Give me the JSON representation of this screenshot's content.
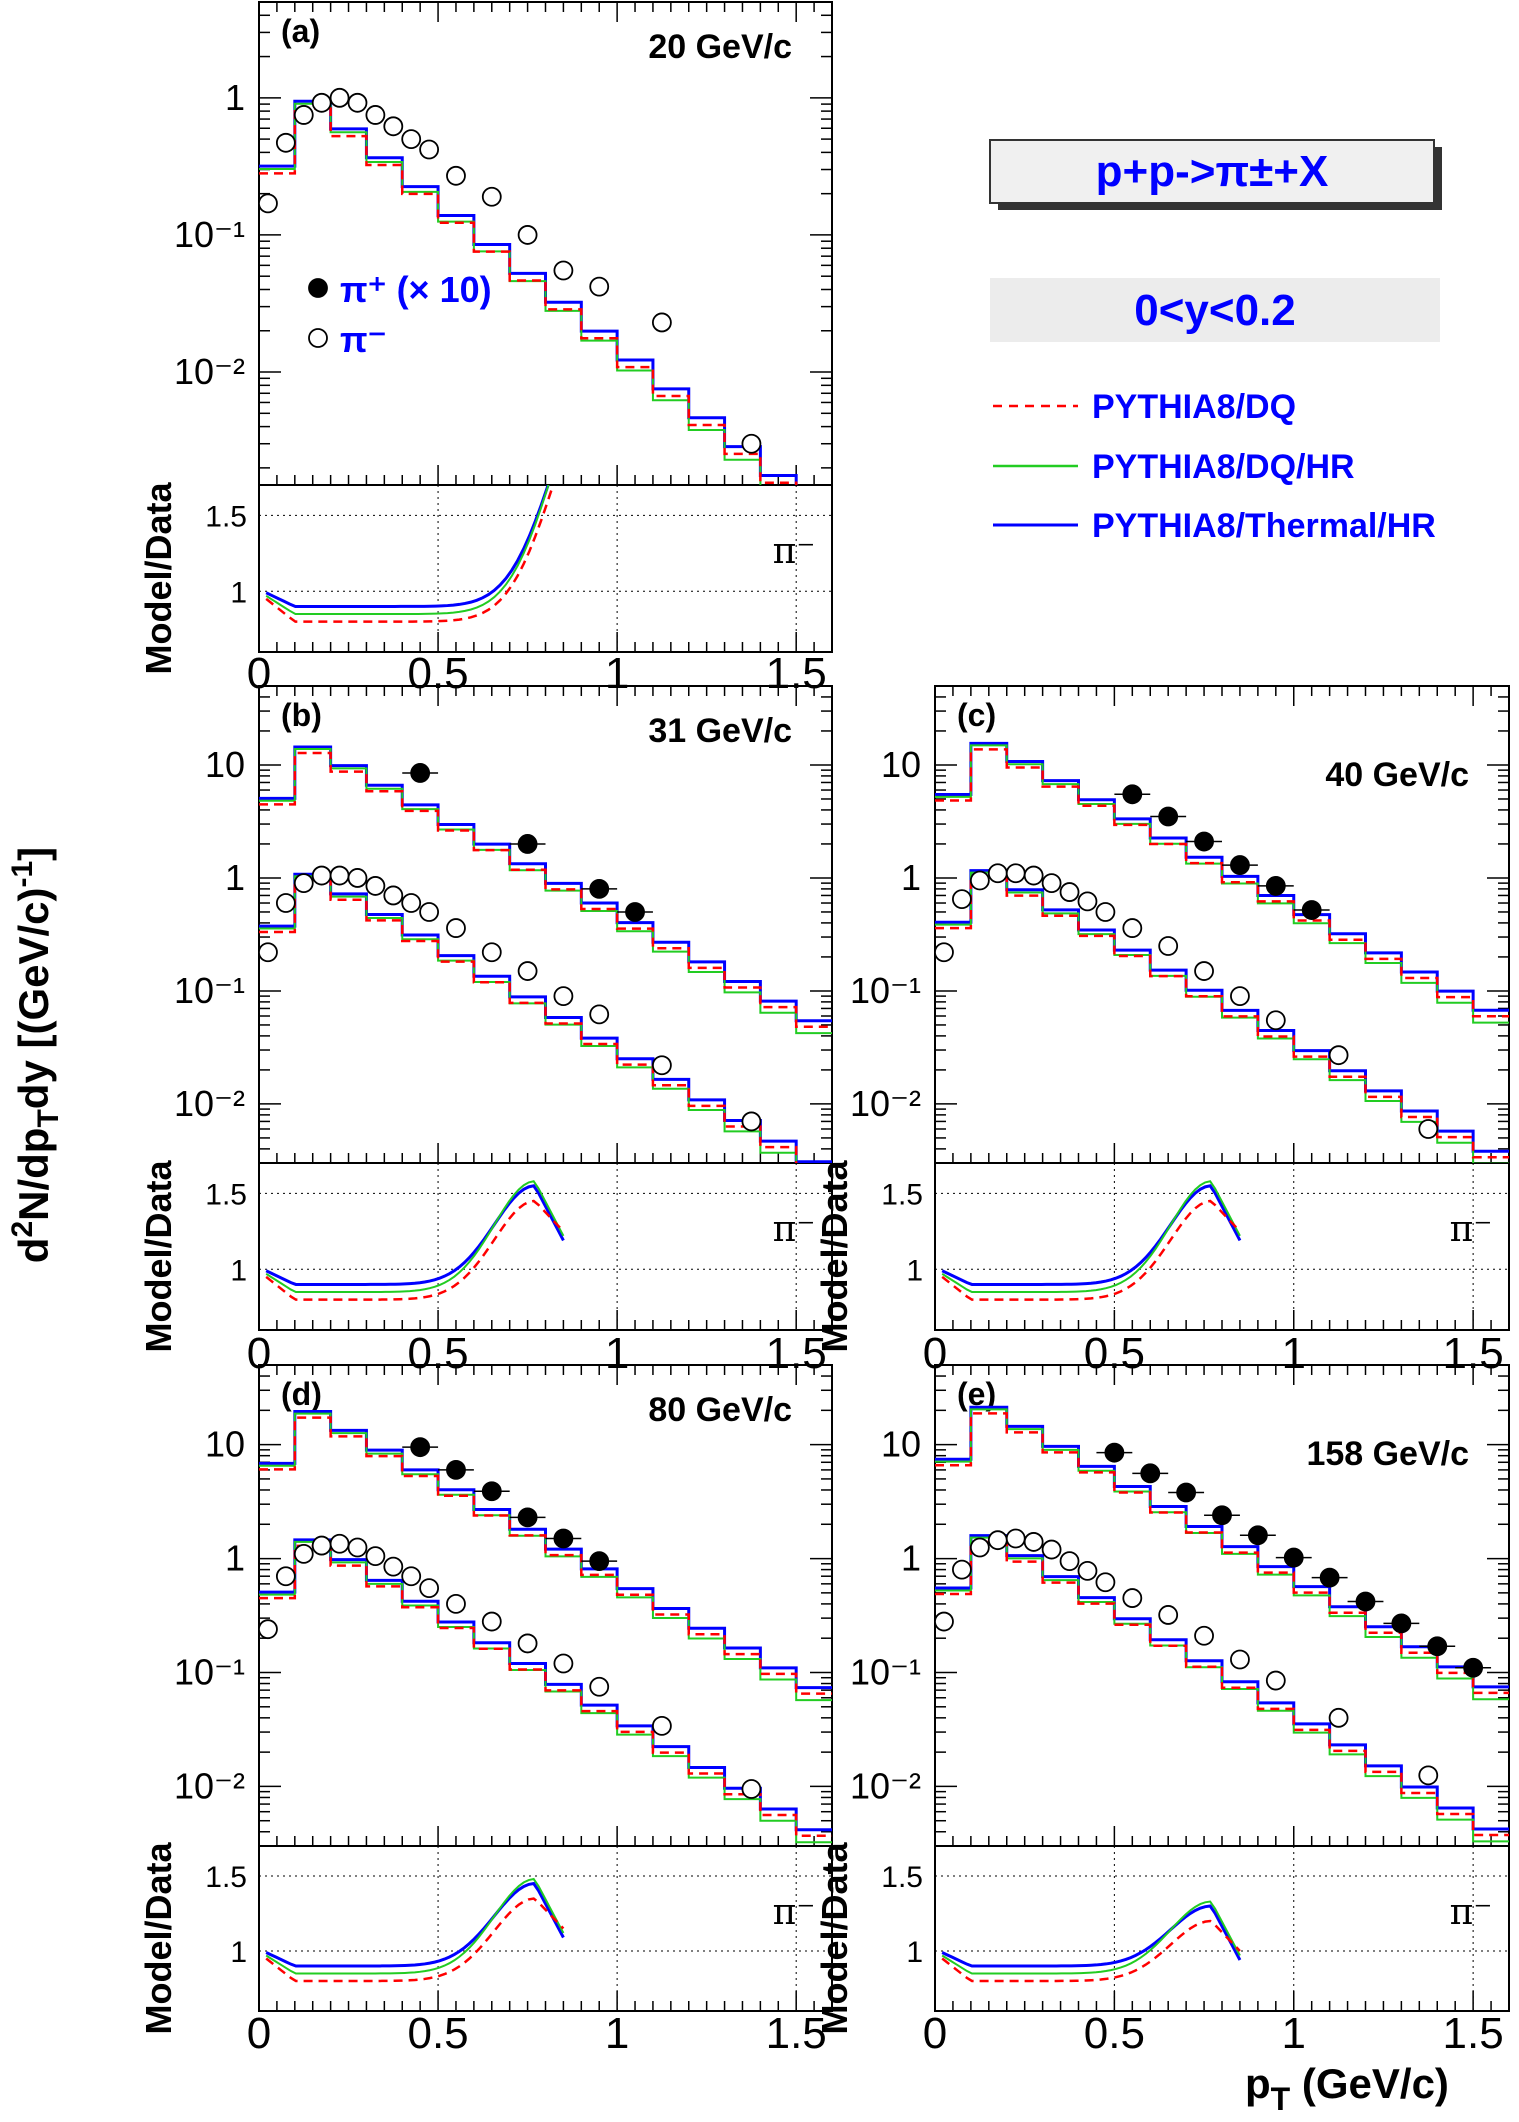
{
  "figure": {
    "y_axis_title": "d²N/dp_Tdy [(GeV/c)⁻¹]",
    "x_axis_title": "p_T (GeV/c)",
    "ratio_ylabel": "Model/Data",
    "reaction_label": "p+p->π±+X",
    "rapidity_label": "0<y<0.2",
    "marker_legend": [
      {
        "symbol": "filled-circle",
        "label": "π⁺ (× 10)"
      },
      {
        "symbol": "open-circle",
        "label": "π⁻"
      }
    ],
    "model_legend": [
      {
        "name": "PYTHIA8/DQ",
        "color": "#ff0000",
        "style": "dashed"
      },
      {
        "name": "PYTHIA8/DQ/HR",
        "color": "#00cc00",
        "style": "solid"
      },
      {
        "name": "PYTHIA8/Thermal/HR",
        "color": "#0000ff",
        "style": "solid"
      }
    ],
    "ratio_tag": "π⁻",
    "colors": {
      "dq": "#ff0000",
      "dqhr": "#22cc22",
      "thermal": "#0000ff"
    }
  },
  "chart_data": [
    {
      "type": "line",
      "panel": "(a)",
      "energy": "20 GeV/c",
      "xlim": [
        0,
        1.6
      ],
      "ylim_log": [
        0.0015,
        5
      ],
      "y_ticks": [
        "10⁻²",
        "10⁻¹",
        "1"
      ],
      "x_ticks": [
        "0",
        "0.5",
        "1",
        "1.5"
      ],
      "ratio_ylim": [
        0.6,
        1.7
      ],
      "ratio_ticks": [
        "1",
        "1.5"
      ],
      "series": [
        {
          "name": "π⁻ data",
          "kind": "open-circle",
          "x": [
            0.025,
            0.075,
            0.125,
            0.175,
            0.225,
            0.275,
            0.325,
            0.375,
            0.425,
            0.475,
            0.55,
            0.65,
            0.75,
            0.85,
            0.95,
            1.125,
            1.375
          ],
          "y": [
            0.17,
            0.47,
            0.75,
            0.92,
            1.0,
            0.92,
            0.75,
            0.62,
            0.5,
            0.42,
            0.27,
            0.19,
            0.1,
            0.055,
            0.042,
            0.023,
            0.003
          ]
        },
        {
          "name": "π⁺ data",
          "kind": "filled-circle",
          "x": [],
          "y": []
        }
      ]
    },
    {
      "type": "line",
      "panel": "(b)",
      "energy": "31 GeV/c",
      "xlim": [
        0,
        1.6
      ],
      "ylim_log": [
        0.003,
        50
      ],
      "y_ticks": [
        "10⁻²",
        "10⁻¹",
        "1",
        "10"
      ],
      "x_ticks": [
        "0",
        "0.5",
        "1",
        "1.5"
      ],
      "ratio_ylim": [
        0.6,
        1.7
      ],
      "ratio_ticks": [
        "1",
        "1.5"
      ],
      "series": [
        {
          "name": "π⁻ data",
          "kind": "open-circle",
          "x": [
            0.025,
            0.075,
            0.125,
            0.175,
            0.225,
            0.275,
            0.325,
            0.375,
            0.425,
            0.475,
            0.55,
            0.65,
            0.75,
            0.85,
            0.95,
            1.125,
            1.375
          ],
          "y": [
            0.22,
            0.6,
            0.9,
            1.05,
            1.05,
            1.0,
            0.85,
            0.7,
            0.6,
            0.5,
            0.36,
            0.22,
            0.15,
            0.09,
            0.062,
            0.022,
            0.007
          ]
        },
        {
          "name": "π⁺ data",
          "kind": "filled-circle",
          "x": [
            0.45,
            0.75,
            0.95,
            1.05
          ],
          "y": [
            8.5,
            2.0,
            0.8,
            0.5
          ]
        }
      ]
    },
    {
      "type": "line",
      "panel": "(c)",
      "energy": "40 GeV/c",
      "xlim": [
        0,
        1.6
      ],
      "ylim_log": [
        0.003,
        50
      ],
      "y_ticks": [
        "10⁻²",
        "10⁻¹",
        "1",
        "10"
      ],
      "x_ticks": [
        "0",
        "0.5",
        "1",
        "1.5"
      ],
      "ratio_ylim": [
        0.6,
        1.7
      ],
      "ratio_ticks": [
        "1",
        "1.5"
      ],
      "series": [
        {
          "name": "π⁻ data",
          "kind": "open-circle",
          "x": [
            0.025,
            0.075,
            0.125,
            0.175,
            0.225,
            0.275,
            0.325,
            0.375,
            0.425,
            0.475,
            0.55,
            0.65,
            0.75,
            0.85,
            0.95,
            1.125,
            1.375
          ],
          "y": [
            0.22,
            0.65,
            0.95,
            1.1,
            1.1,
            1.05,
            0.9,
            0.75,
            0.62,
            0.5,
            0.36,
            0.25,
            0.15,
            0.09,
            0.055,
            0.027,
            0.006
          ]
        },
        {
          "name": "π⁺ data",
          "kind": "filled-circle",
          "x": [
            0.55,
            0.65,
            0.75,
            0.85,
            0.95,
            1.05
          ],
          "y": [
            5.5,
            3.5,
            2.1,
            1.3,
            0.85,
            0.52
          ]
        }
      ]
    },
    {
      "type": "line",
      "panel": "(d)",
      "energy": "80 GeV/c",
      "xlim": [
        0,
        1.6
      ],
      "ylim_log": [
        0.003,
        50
      ],
      "y_ticks": [
        "10⁻²",
        "10⁻¹",
        "1",
        "10"
      ],
      "x_ticks": [
        "0",
        "0.5",
        "1",
        "1.5"
      ],
      "ratio_ylim": [
        0.6,
        1.7
      ],
      "ratio_ticks": [
        "1",
        "1.5"
      ],
      "series": [
        {
          "name": "π⁻ data",
          "kind": "open-circle",
          "x": [
            0.025,
            0.075,
            0.125,
            0.175,
            0.225,
            0.275,
            0.325,
            0.375,
            0.425,
            0.475,
            0.55,
            0.65,
            0.75,
            0.85,
            0.95,
            1.125,
            1.375
          ],
          "y": [
            0.24,
            0.7,
            1.1,
            1.3,
            1.35,
            1.25,
            1.05,
            0.85,
            0.7,
            0.55,
            0.4,
            0.28,
            0.18,
            0.12,
            0.075,
            0.034,
            0.0095
          ]
        },
        {
          "name": "π⁺ data",
          "kind": "filled-circle",
          "x": [
            0.45,
            0.55,
            0.65,
            0.75,
            0.85,
            0.95
          ],
          "y": [
            9.5,
            6.0,
            3.9,
            2.3,
            1.5,
            0.95
          ]
        }
      ]
    },
    {
      "type": "line",
      "panel": "(e)",
      "energy": "158 GeV/c",
      "xlim": [
        0,
        1.6
      ],
      "ylim_log": [
        0.003,
        50
      ],
      "y_ticks": [
        "10⁻²",
        "10⁻¹",
        "1",
        "10"
      ],
      "x_ticks": [
        "0",
        "0.5",
        "1",
        "1.5"
      ],
      "ratio_ylim": [
        0.6,
        1.7
      ],
      "ratio_ticks": [
        "1",
        "1.5"
      ],
      "series": [
        {
          "name": "π⁻ data",
          "kind": "open-circle",
          "x": [
            0.025,
            0.075,
            0.125,
            0.175,
            0.225,
            0.275,
            0.325,
            0.375,
            0.425,
            0.475,
            0.55,
            0.65,
            0.75,
            0.85,
            0.95,
            1.125,
            1.375
          ],
          "y": [
            0.28,
            0.8,
            1.25,
            1.45,
            1.5,
            1.4,
            1.2,
            0.95,
            0.78,
            0.62,
            0.45,
            0.32,
            0.21,
            0.13,
            0.085,
            0.04,
            0.0125
          ]
        },
        {
          "name": "π⁺ data",
          "kind": "filled-circle",
          "x": [
            0.5,
            0.6,
            0.7,
            0.8,
            0.9,
            1.0,
            1.1,
            1.2,
            1.3,
            1.4,
            1.5
          ],
          "y": [
            8.5,
            5.6,
            3.8,
            2.4,
            1.6,
            1.02,
            0.68,
            0.42,
            0.27,
            0.17,
            0.11
          ]
        }
      ]
    }
  ]
}
